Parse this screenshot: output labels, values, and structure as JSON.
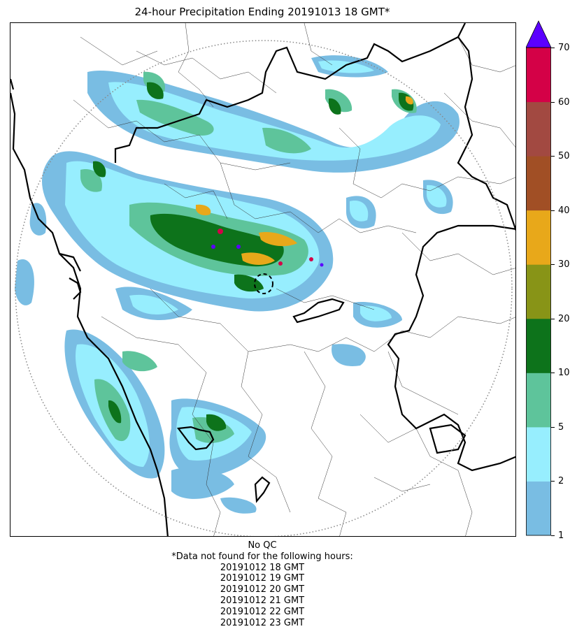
{
  "title": "24-hour Precipitation Ending 20191013 18 GMT*",
  "colorbar": {
    "ticks": [
      "1",
      "2",
      "5",
      "10",
      "20",
      "30",
      "40",
      "50",
      "60",
      "70"
    ],
    "bins": [
      {
        "from": 1,
        "to": 2,
        "color": "#79bde3"
      },
      {
        "from": 2,
        "to": 5,
        "color": "#97eefe"
      },
      {
        "from": 5,
        "to": 10,
        "color": "#5ec49b"
      },
      {
        "from": 10,
        "to": 20,
        "color": "#0d731b"
      },
      {
        "from": 20,
        "to": 30,
        "color": "#889417"
      },
      {
        "from": 30,
        "to": 40,
        "color": "#e8a81a"
      },
      {
        "from": 40,
        "to": 50,
        "color": "#a14f25"
      },
      {
        "from": 50,
        "to": 60,
        "color": "#a24941"
      },
      {
        "from": 60,
        "to": 70,
        "color": "#d40147"
      }
    ],
    "overflow_color": "#5b00ff"
  },
  "notes": {
    "qc": "No QC",
    "missing_header": "*Data not found for the following hours:",
    "missing_hours": [
      "20191012 18 GMT",
      "20191012 19 GMT",
      "20191012 20 GMT",
      "20191012 21 GMT",
      "20191012 22 GMT",
      "20191012 23 GMT"
    ]
  }
}
